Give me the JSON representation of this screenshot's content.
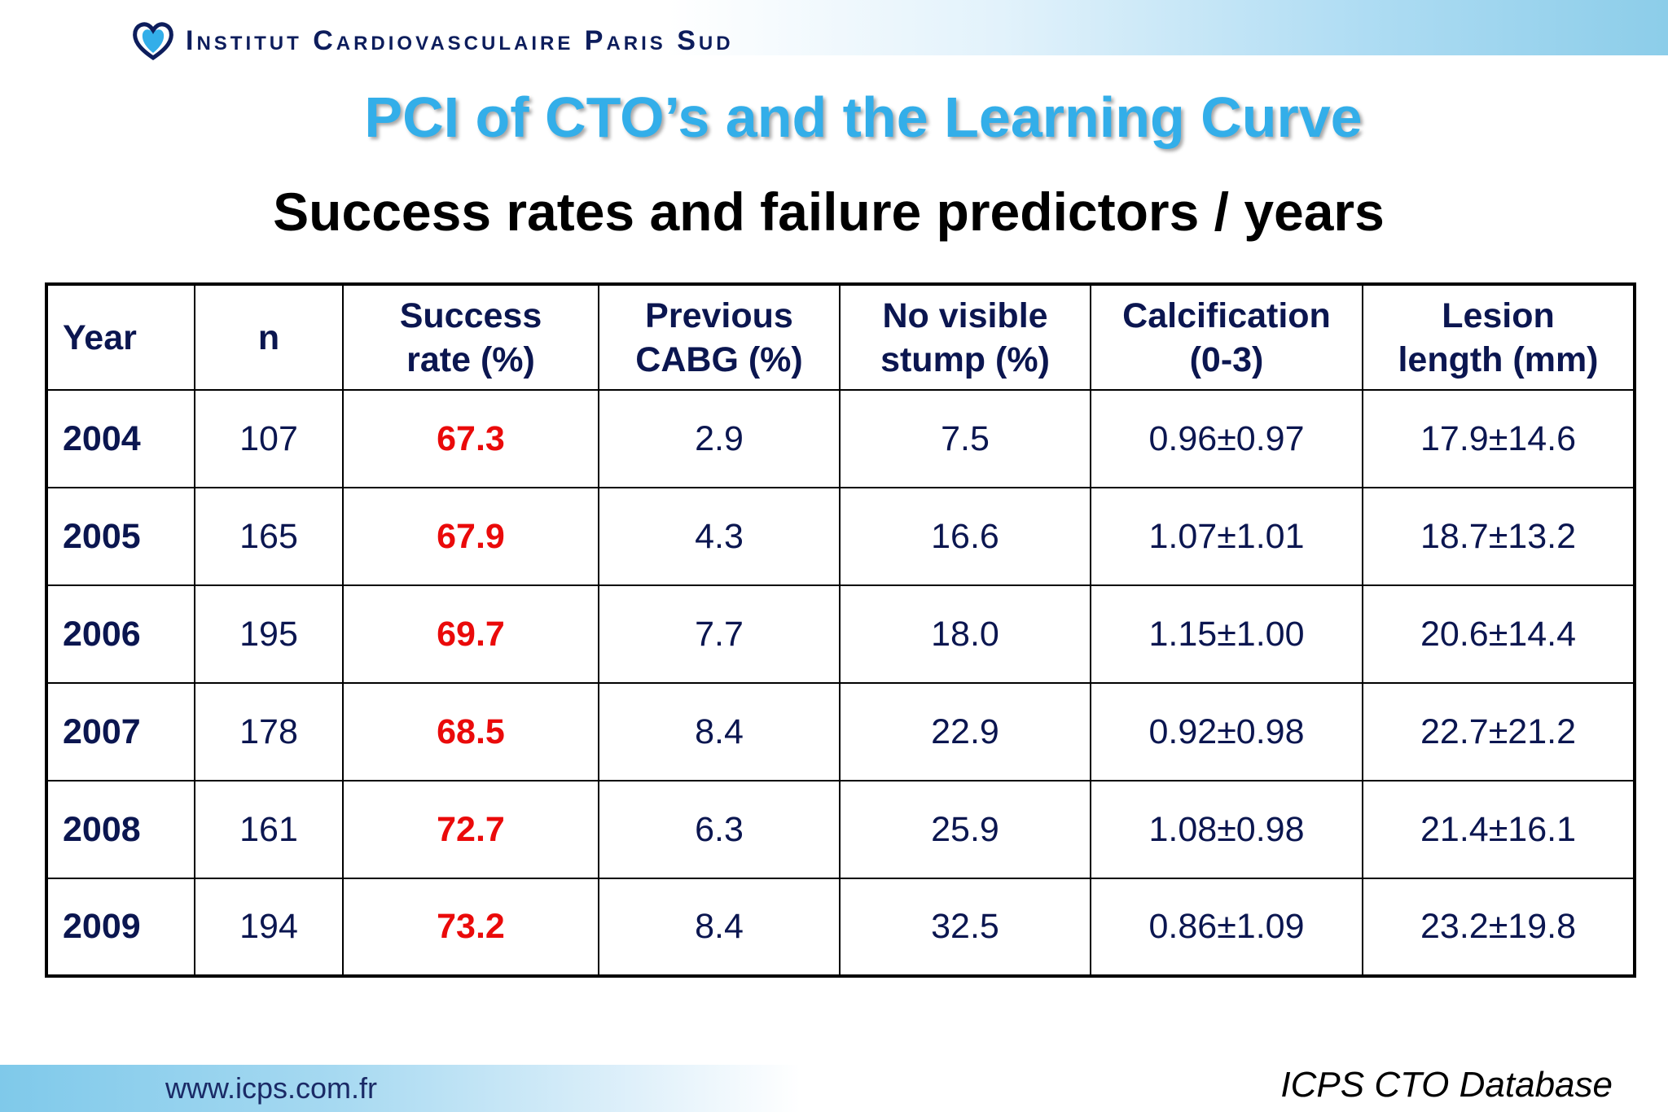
{
  "header": {
    "institute": "Institut Cardiovasculaire Paris Sud",
    "logo_icon": "heart-logo-icon"
  },
  "title": "PCI of CTO’s and the Learning Curve",
  "subtitle": "Success rates and failure predictors / years",
  "table": {
    "headers": [
      [
        "Year"
      ],
      [
        "n"
      ],
      [
        "Success",
        "rate (%)"
      ],
      [
        "Previous",
        "CABG (%)"
      ],
      [
        "No visible",
        "stump (%)"
      ],
      [
        "Calcification",
        "(0-3)"
      ],
      [
        "Lesion",
        "length (mm)"
      ]
    ],
    "rows": [
      {
        "year": "2004",
        "n": "107",
        "success": "67.3",
        "cabg": "2.9",
        "stump": "7.5",
        "calc_mean": "0.96",
        "calc_sd": "0.97",
        "len_mean": "17.9",
        "len_sd": "14.6"
      },
      {
        "year": "2005",
        "n": "165",
        "success": "67.9",
        "cabg": "4.3",
        "stump": "16.6",
        "calc_mean": "1.07",
        "calc_sd": "1.01",
        "len_mean": "18.7",
        "len_sd": "13.2"
      },
      {
        "year": "2006",
        "n": "195",
        "success": "69.7",
        "cabg": "7.7",
        "stump": "18.0",
        "calc_mean": "1.15",
        "calc_sd": "1.00",
        "len_mean": "20.6",
        "len_sd": "14.4"
      },
      {
        "year": "2007",
        "n": "178",
        "success": "68.5",
        "cabg": "8.4",
        "stump": "22.9",
        "calc_mean": "0.92",
        "calc_sd": "0.98",
        "len_mean": "22.7",
        "len_sd": "21.2"
      },
      {
        "year": "2008",
        "n": "161",
        "success": "72.7",
        "cabg": "6.3",
        "stump": "25.9",
        "calc_mean": "1.08",
        "calc_sd": "0.98",
        "len_mean": "21.4",
        "len_sd": "16.1"
      },
      {
        "year": "2009",
        "n": "194",
        "success": "73.2",
        "cabg": "8.4",
        "stump": "32.5",
        "calc_mean": "0.86",
        "calc_sd": "1.09",
        "len_mean": "23.2",
        "len_sd": "19.8"
      }
    ],
    "pm_symbol": "±"
  },
  "footer": {
    "website": "www.icps.com.fr",
    "source": "ICPS CTO Database"
  },
  "colors": {
    "title": "#33aee9",
    "success": "#ea0a0a",
    "text": "#0b1650",
    "brand": "#0d1d5c"
  }
}
